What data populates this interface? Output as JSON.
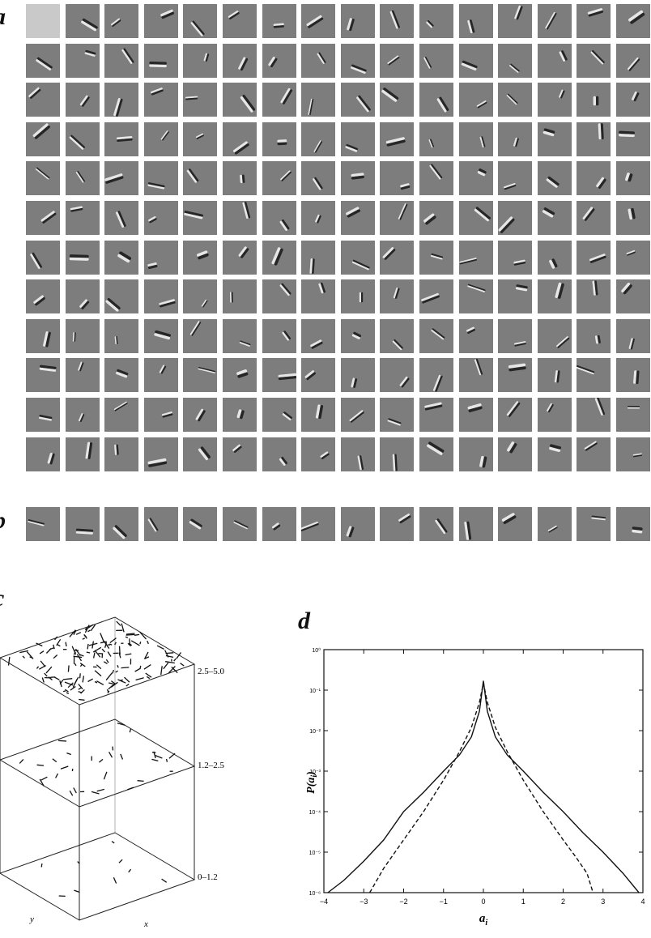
{
  "panels": {
    "a": {
      "letter": "a",
      "rows": 12,
      "cols": 16
    },
    "b": {
      "letter": "b",
      "count": 16
    },
    "c": {
      "letter": "c",
      "layers": [
        {
          "label": "2.5–5.0",
          "density": "high"
        },
        {
          "label": "1.2–2.5",
          "density": "medium"
        },
        {
          "label": "0–1.2",
          "density": "low"
        }
      ],
      "axis_x": "x",
      "axis_y": "y"
    }
  },
  "chart_data": {
    "type": "line",
    "panel_letter": "d",
    "xlabel": "a_i",
    "ylabel": "P(a_i)",
    "xlim": [
      -4,
      4
    ],
    "ylim": [
      1e-06,
      1
    ],
    "yscale": "log",
    "x_ticks": [
      -4,
      -3,
      -2,
      -1,
      0,
      1,
      2,
      3,
      4
    ],
    "y_ticks": [
      1,
      0.1,
      0.01,
      0.001,
      0.0001,
      1e-05,
      1e-06
    ],
    "y_tick_labels": [
      "10⁰",
      "10⁻¹",
      "10⁻²",
      "10⁻³",
      "10⁻⁴",
      "10⁻⁵",
      "10⁻⁶"
    ],
    "series": [
      {
        "style": "solid",
        "x": [
          -3.9,
          -3.5,
          -3.0,
          -2.5,
          -2.0,
          -1.5,
          -1.0,
          -0.6,
          -0.3,
          -0.1,
          0.0,
          0.1,
          0.3,
          0.6,
          1.0,
          1.5,
          2.0,
          2.5,
          3.0,
          3.5,
          3.9
        ],
        "y": [
          1e-06,
          2e-06,
          6e-06,
          2e-05,
          0.0001,
          0.0003,
          0.001,
          0.0025,
          0.007,
          0.03,
          0.17,
          0.03,
          0.007,
          0.0025,
          0.001,
          0.0003,
          0.0001,
          3e-05,
          1e-05,
          3e-06,
          1e-06
        ]
      },
      {
        "style": "dashed",
        "x": [
          -2.85,
          -2.5,
          -2.0,
          -1.5,
          -1.0,
          -0.6,
          -0.3,
          -0.1,
          0.0,
          0.1,
          0.3,
          0.6,
          1.0,
          1.5,
          2.0,
          2.3,
          2.6,
          2.75
        ],
        "y": [
          1e-06,
          4e-06,
          2e-05,
          0.0001,
          0.0006,
          0.003,
          0.012,
          0.05,
          0.15,
          0.05,
          0.012,
          0.003,
          0.0006,
          0.0001,
          2e-05,
          8e-06,
          3e-06,
          1e-06
        ]
      }
    ]
  }
}
